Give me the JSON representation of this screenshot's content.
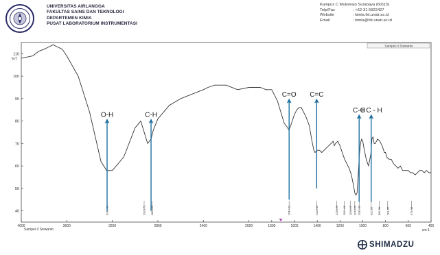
{
  "header": {
    "institution_lines": [
      "UNIVERSITAS AIRLANGGA",
      "FAKULTAS SAINS DAN TEKNOLOGI",
      "DEPARTEMEN KIMIA",
      "PUSAT LABORATORIUM INSTRUMENTASI"
    ],
    "address": "Kampus C Mulyorejo Surabaya (60115)",
    "contact": [
      {
        "label": "Telp/Fax",
        "value": ": +62-31 5922427"
      },
      {
        "label": "Website",
        "value": ": kimia.fst.unair.ac.id"
      },
      {
        "label": "Email",
        "value": ": kimia@fst.unair.ac.id"
      }
    ]
  },
  "brand": {
    "name": "SHIMADZU"
  },
  "chart_data": {
    "type": "line",
    "title": "",
    "xlabel": "cm-1",
    "ylabel": "%T",
    "xlim": [
      4000,
      400
    ],
    "ylim": [
      35,
      115
    ],
    "x_reversed": true,
    "grid": false,
    "legend": {
      "position": "top-right",
      "entries": [
        "Sampel-3 Siswanto"
      ]
    },
    "footer_label": "Sampel-3 Siswanto",
    "x_ticks": [
      4000,
      3600,
      3200,
      2800,
      2400,
      2000,
      1800,
      1600,
      1400,
      1200,
      1000,
      800,
      600,
      400
    ],
    "y_ticks": [
      40,
      50,
      60,
      70,
      80,
      90,
      100,
      110
    ],
    "series": [
      {
        "name": "Sampel-3 Siswanto",
        "color": "#333333",
        "x": [
          4000,
          3900,
          3850,
          3800,
          3760,
          3720,
          3680,
          3640,
          3600,
          3500,
          3400,
          3300,
          3250,
          3200,
          3100,
          3000,
          2950,
          2920,
          2890,
          2860,
          2840,
          2800,
          2700,
          2600,
          2500,
          2450,
          2400,
          2360,
          2300,
          2200,
          2100,
          2000,
          1900,
          1850,
          1800,
          1750,
          1720,
          1690,
          1660,
          1650,
          1640,
          1620,
          1600,
          1580,
          1560,
          1540,
          1500,
          1470,
          1450,
          1430,
          1420,
          1400,
          1380,
          1360,
          1340,
          1320,
          1300,
          1280,
          1260,
          1250,
          1240,
          1220,
          1200,
          1180,
          1160,
          1140,
          1120,
          1100,
          1080,
          1070,
          1060,
          1050,
          1040,
          1030,
          1020,
          1010,
          1000,
          990,
          970,
          950,
          930,
          920,
          910,
          900,
          890,
          870,
          850,
          830,
          810,
          800,
          790,
          770,
          750,
          730,
          710,
          690,
          670,
          650,
          630,
          600,
          580,
          560,
          540,
          520,
          500,
          480,
          460,
          440,
          420,
          400
        ],
        "y": [
          108,
          109,
          111,
          112,
          113,
          114,
          113,
          112,
          109,
          100,
          84,
          62,
          58,
          58,
          64,
          77,
          80,
          75,
          70,
          72,
          76,
          81,
          87,
          90,
          92,
          93,
          94,
          95,
          96,
          96,
          94,
          95,
          95,
          94,
          94,
          89,
          84,
          79,
          77,
          76,
          77,
          80,
          83,
          85,
          86,
          86,
          82,
          78,
          72,
          67,
          66,
          67,
          67,
          66,
          67,
          68,
          69,
          70,
          71,
          69,
          70,
          71,
          69,
          66,
          63,
          61,
          59,
          56,
          51,
          48,
          47,
          48,
          56,
          65,
          70,
          72,
          71,
          68,
          63,
          60,
          65,
          72,
          73,
          70,
          70,
          72,
          71,
          69,
          66,
          66,
          64,
          63,
          63,
          61,
          60,
          59,
          60,
          58,
          58,
          58,
          57,
          57,
          56,
          57,
          58,
          58,
          57,
          58,
          57,
          57
        ]
      }
    ],
    "peak_labels": [
      {
        "x": 3246.42,
        "text": "3246.42"
      },
      {
        "x": 2920.72,
        "text": "2920.72"
      },
      {
        "x": 2850.22,
        "text": "2850.22"
      },
      {
        "x": 1647.21,
        "text": "1647.21"
      },
      {
        "x": 1405.04,
        "text": "1405.04"
      },
      {
        "x": 1230.29,
        "text": "1230.29"
      },
      {
        "x": 1161.66,
        "text": "1161.66"
      },
      {
        "x": 1108.22,
        "text": "1108.22"
      },
      {
        "x": 1070.26,
        "text": "1070.26"
      },
      {
        "x": 1031.92,
        "text": "1031.92"
      },
      {
        "x": 925.83,
        "text": "925.83"
      },
      {
        "x": 856.39,
        "text": "856.39"
      },
      {
        "x": 781.06,
        "text": "781.06"
      },
      {
        "x": 573.0,
        "text": "573.00"
      }
    ],
    "annotations": [
      {
        "text": "O-H",
        "x": 3246,
        "y_from": 40,
        "y_to": 80
      },
      {
        "text": "C-H",
        "x": 2860,
        "y_from": 40,
        "y_to": 80
      },
      {
        "text": "C=O",
        "x": 1647,
        "y_from": 45,
        "y_to": 89
      },
      {
        "text": "C=C",
        "x": 1405,
        "y_from": 50,
        "y_to": 89
      },
      {
        "text": "C-O",
        "x": 1032,
        "y_from": 44,
        "y_to": 82
      },
      {
        "text": "= C - H",
        "x": 926,
        "y_from": 44,
        "y_to": 82
      }
    ]
  }
}
